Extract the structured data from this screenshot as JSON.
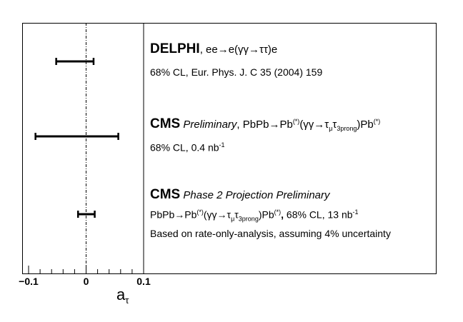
{
  "chart_data": {
    "type": "errorbar",
    "orientation": "horizontal",
    "xlabel": "a",
    "xlabel_sub": "τ",
    "xlim": [
      -0.1,
      0.1
    ],
    "xticks": [
      {
        "value": -0.1,
        "label": "−0.1"
      },
      {
        "value": 0,
        "label": "0"
      },
      {
        "value": 0.1,
        "label": "0.1"
      }
    ],
    "reference_line": 0,
    "grid": false,
    "entries": [
      {
        "experiment": "DELPHI",
        "style": "",
        "process": ", ee→e(γγ→ττ)e",
        "detail_lines": [
          "68% CL, Eur. Phys. J. C 35 (2004) 159"
        ],
        "interval": [
          -0.052,
          0.013
        ]
      },
      {
        "experiment": "CMS",
        "style": "Preliminary",
        "process": ", PbPb→Pb(*)(γγ→τμτ3prong)Pb(*)",
        "detail_lines": [
          "68% CL, 0.4 nb-1"
        ],
        "interval": [
          -0.088,
          0.056
        ]
      },
      {
        "experiment": "CMS",
        "style": "Phase 2 Projection Preliminary",
        "process": "",
        "detail_lines": [
          "PbPb→Pb(*)(γγ→τμτ3prong)Pb(*), 68% CL, 13 nb-1",
          "Based on rate-only-analysis, assuming 4% uncertainty"
        ],
        "interval": [
          -0.014,
          0.015
        ]
      }
    ]
  }
}
